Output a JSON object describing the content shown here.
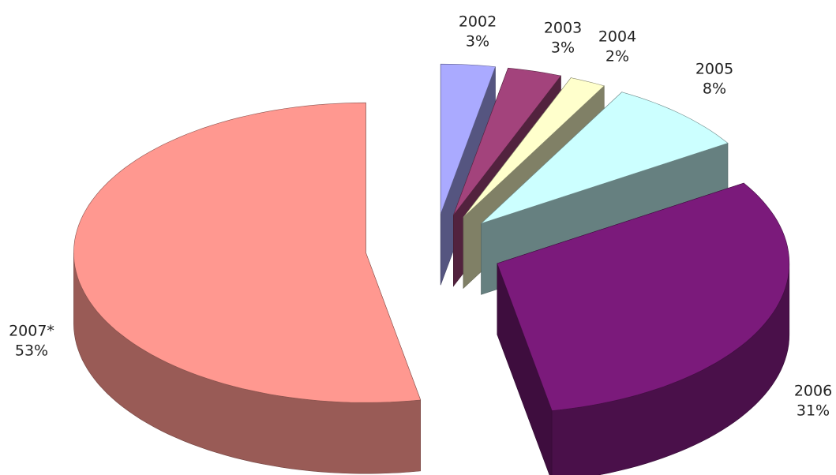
{
  "chart_data": {
    "type": "pie3d",
    "categories": [
      "2002",
      "2003",
      "2004",
      "2005",
      "2006",
      "2007*"
    ],
    "values": [
      3,
      3,
      2,
      8,
      31,
      53
    ],
    "value_labels": [
      "3%",
      "3%",
      "2%",
      "8%",
      "31%",
      "53%"
    ],
    "colors": [
      "#aaaaff",
      "#a3437c",
      "#ffffcc",
      "#ccffff",
      "#7b1a7b",
      "#ff9890"
    ]
  }
}
